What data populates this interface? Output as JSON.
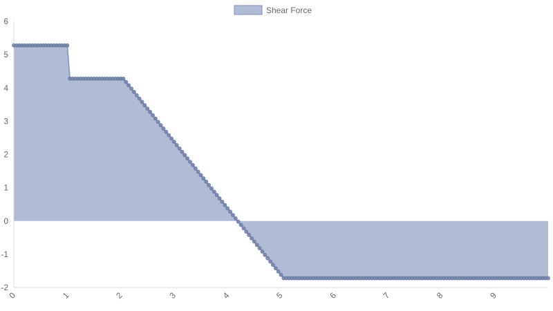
{
  "chart_data": {
    "type": "area",
    "legend": {
      "position": "top-center",
      "entries": [
        "Shear Force"
      ]
    },
    "series": [
      {
        "name": "Shear Force",
        "fill_color": "#b0bcd6",
        "line_color": "#7f90b4",
        "point_color": "#7284ab",
        "step_x": 0.05,
        "segments": [
          {
            "x_from": 0,
            "x_to": 1,
            "value_start": 5.28,
            "value_end": 5.28
          },
          {
            "x_from": 1,
            "x_to": 2.05,
            "value_start": 4.28,
            "value_end": 4.28
          },
          {
            "x_from": 2.05,
            "x_to": 5.05,
            "value_start": 4.28,
            "value_end": -1.72
          },
          {
            "x_from": 5.05,
            "x_to": 10,
            "value_start": -1.72,
            "value_end": -1.72
          }
        ]
      }
    ],
    "x_axis": {
      "ticks": [
        "0",
        "1",
        "2",
        "3",
        "4",
        "5",
        "6",
        "7",
        "8",
        "9"
      ],
      "range": [
        0,
        10
      ]
    },
    "y_axis": {
      "ticks": [
        "6",
        "5",
        "4",
        "3",
        "2",
        "1",
        "0",
        "-1",
        "-2"
      ],
      "range": [
        -2,
        6
      ]
    },
    "grid": false
  }
}
